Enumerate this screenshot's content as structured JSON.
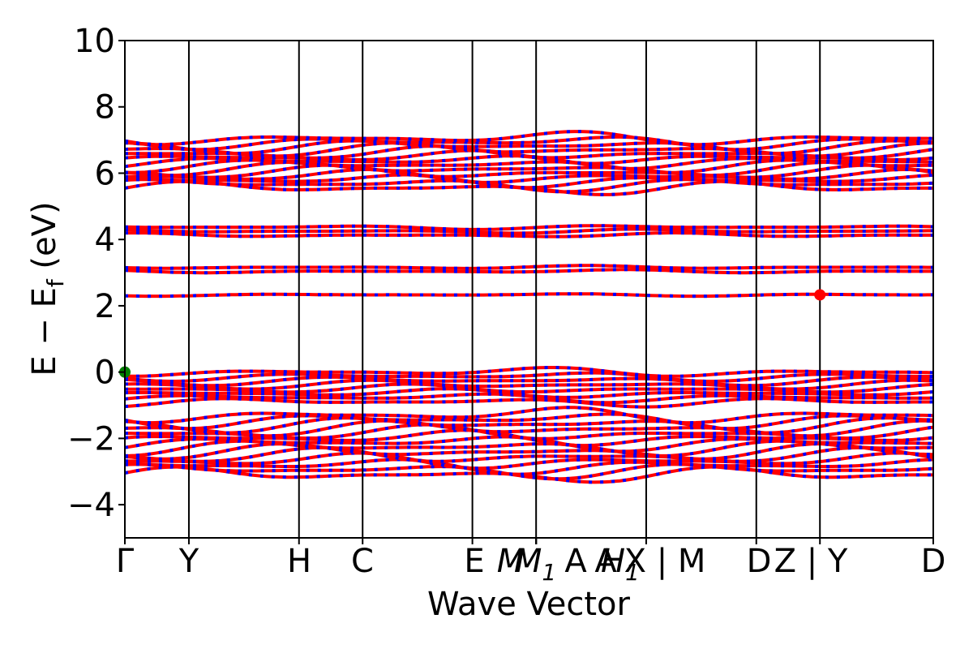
{
  "chart_data": {
    "type": "line",
    "title": "",
    "xlabel": "Wave Vector",
    "ylabel": "E − E_f (eV)",
    "ylabel_parts": {
      "main": "E − E",
      "sub": "f",
      "unit": " (eV)"
    },
    "ylim": [
      -5,
      10
    ],
    "yticks": [
      -4,
      -2,
      0,
      2,
      4,
      6,
      8,
      10
    ],
    "ytick_labels": [
      "−4",
      "−2",
      "0",
      "2",
      "4",
      "6",
      "8",
      "10"
    ],
    "xlim": [
      0,
      1
    ],
    "kpoints": [
      {
        "label": "Γ",
        "x": 0.0
      },
      {
        "label": "Y",
        "x": 0.0792
      },
      {
        "label": "H",
        "x": 0.2154
      },
      {
        "label": "C",
        "x": 0.2941
      },
      {
        "label": "E",
        "x": 0.4299
      },
      {
        "label": "M",
        "x": 0.5087,
        "italic": true
      },
      {
        "label": "M",
        "sub": "1",
        "x": 0.5087,
        "italic": true
      },
      {
        "label": "A",
        "x": 0.5087
      },
      {
        "label": "A",
        "x": 0.5087
      },
      {
        "label": "H",
        "sub": "1",
        "x": 0.6449,
        "italic": true
      },
      {
        "label": "X | M",
        "x": 0.6449
      },
      {
        "label": "D",
        "x": 0.7811
      },
      {
        "label": "Z | Y",
        "x": 0.8598
      },
      {
        "label": "D",
        "x": 1.0
      }
    ],
    "vlines": [
      0.0792,
      0.2154,
      0.2941,
      0.4299,
      0.5087,
      0.6449,
      0.7811,
      0.8598
    ],
    "band_groups": [
      {
        "name": "",
        "center": 6.3,
        "spread": 0.75,
        "count": 14
      },
      {
        "name": "",
        "center": 4.25,
        "spread": 0.12,
        "count": 3
      },
      {
        "name": "",
        "center": 3.1,
        "spread": 0.06,
        "count": 2
      },
      {
        "name": "",
        "center": 2.33,
        "spread": 0.01,
        "count": 1
      },
      {
        "name": "",
        "center": -0.45,
        "spread": 0.45,
        "count": 8
      },
      {
        "name": "",
        "center": -2.2,
        "spread": 0.9,
        "count": 14
      }
    ],
    "markers": [
      {
        "x": 0.0,
        "y": 0.0,
        "color": "#008000"
      },
      {
        "x": 0.8598,
        "y": 2.33,
        "color": "#ff0000"
      }
    ],
    "colors": {
      "band_red": "#ff0000",
      "band_blue": "#0000ff",
      "axes": "#000000"
    },
    "grid": false,
    "legend": "none"
  }
}
